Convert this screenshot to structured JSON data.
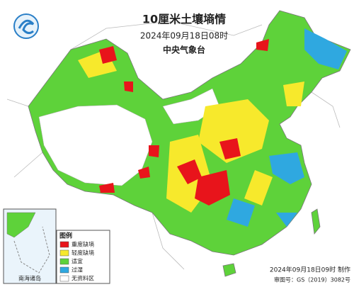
{
  "header": {
    "title": "10厘米土壤墒情",
    "time": "2024年09月18日08时",
    "issuer": "中央气象台"
  },
  "legend": {
    "title": "图例",
    "items": [
      {
        "label": "重度缺墒",
        "color": "#e8141b"
      },
      {
        "label": "轻度缺墒",
        "color": "#f7e92c"
      },
      {
        "label": "适宜",
        "color": "#5ed23a"
      },
      {
        "label": "过湿",
        "color": "#2fa8e0"
      },
      {
        "label": "无资料区",
        "color": "#ffffff"
      }
    ]
  },
  "inset": {
    "label": "南海诸岛"
  },
  "footer": {
    "made": "2024年09月18日09时 制作",
    "review_no": "审图号：GS（2019）3082号"
  }
}
